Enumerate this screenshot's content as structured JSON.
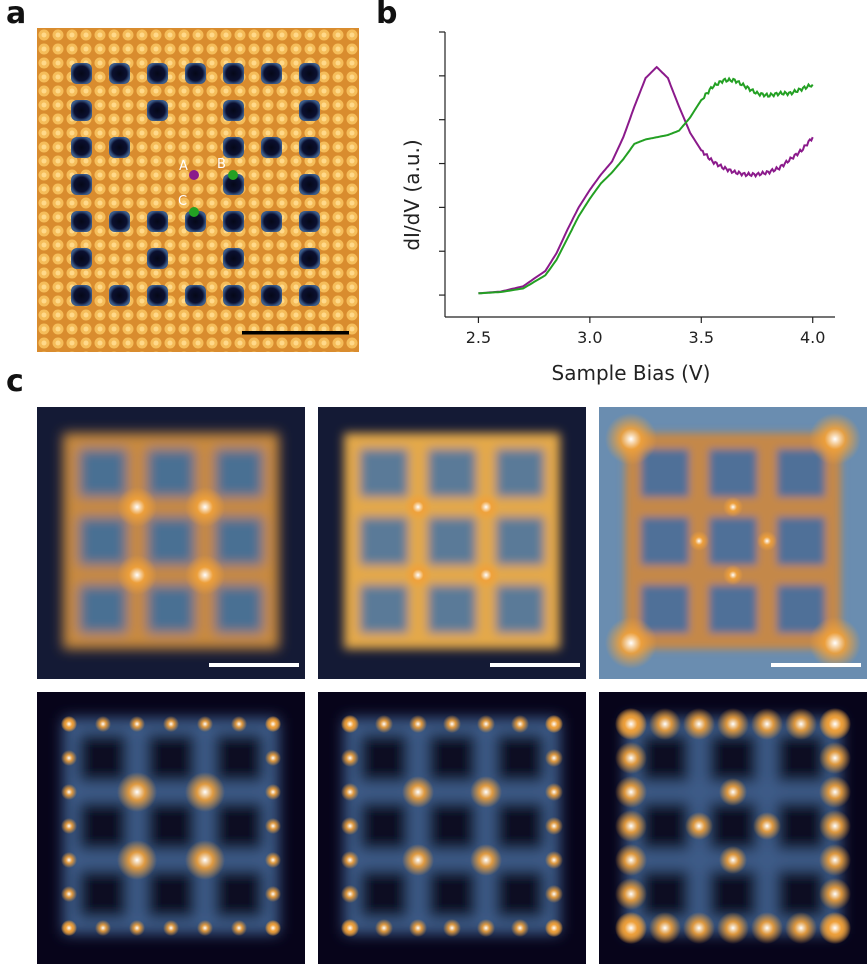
{
  "panel_labels": {
    "a": "a",
    "b": "b",
    "c": "c"
  },
  "panel_a": {
    "point_labels": {
      "A": "A",
      "B": "B",
      "C": "C"
    },
    "colors": {
      "A": "#8b1a8b",
      "B": "#23a023",
      "C": "#23a023"
    }
  },
  "panel_b": {
    "chart_data": {
      "type": "line",
      "xlabel": "Sample Bias (V)",
      "ylabel": "dI/dV (a.u.)",
      "xlim": [
        2.35,
        4.1
      ],
      "xticks": [
        2.5,
        3.0,
        3.5,
        4.0
      ],
      "xtick_labels": [
        "2.5",
        "3.0",
        "3.5",
        "4.0"
      ],
      "yticks": [
        0,
        1,
        2,
        3,
        4,
        5,
        6
      ],
      "ylim": [
        -0.5,
        6.0
      ],
      "series": [
        {
          "color": "#8b1a8b",
          "x": [
            2.5,
            2.6,
            2.7,
            2.8,
            2.85,
            2.9,
            2.95,
            3.0,
            3.05,
            3.1,
            3.15,
            3.2,
            3.25,
            3.3,
            3.35,
            3.4,
            3.45,
            3.5,
            3.55,
            3.6,
            3.65,
            3.7,
            3.75,
            3.8,
            3.85,
            3.9,
            3.95,
            4.0
          ],
          "y": [
            0.04,
            0.08,
            0.2,
            0.55,
            0.95,
            1.5,
            2.0,
            2.4,
            2.75,
            3.05,
            3.6,
            4.3,
            4.95,
            5.2,
            4.95,
            4.3,
            3.7,
            3.3,
            3.05,
            2.9,
            2.8,
            2.75,
            2.75,
            2.8,
            2.9,
            3.1,
            3.3,
            3.6
          ]
        },
        {
          "color": "#23a023",
          "x": [
            2.5,
            2.6,
            2.7,
            2.8,
            2.85,
            2.9,
            2.95,
            3.0,
            3.05,
            3.1,
            3.15,
            3.2,
            3.25,
            3.3,
            3.35,
            3.4,
            3.45,
            3.5,
            3.55,
            3.6,
            3.65,
            3.7,
            3.75,
            3.8,
            3.85,
            3.9,
            3.95,
            4.0
          ],
          "y": [
            0.04,
            0.07,
            0.15,
            0.45,
            0.8,
            1.3,
            1.8,
            2.2,
            2.55,
            2.8,
            3.1,
            3.45,
            3.55,
            3.6,
            3.65,
            3.75,
            4.05,
            4.45,
            4.75,
            4.9,
            4.9,
            4.75,
            4.6,
            4.55,
            4.6,
            4.6,
            4.7,
            4.8
          ]
        }
      ]
    }
  },
  "panel_c": {
    "colors": {
      "dark": "#1a1035",
      "mid": "#4a6f93",
      "bright": "#f0a13a",
      "hot": "#ffffff"
    }
  }
}
